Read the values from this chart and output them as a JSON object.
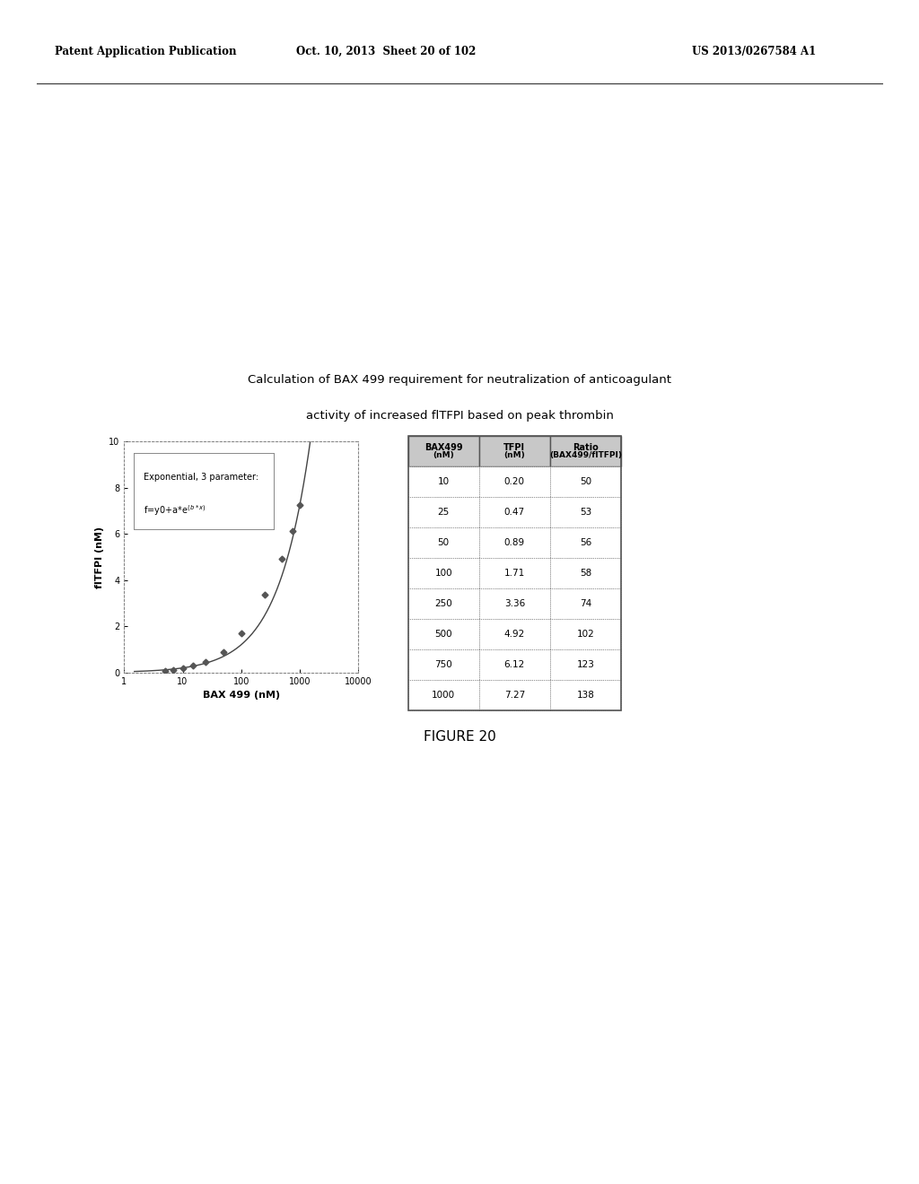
{
  "header_left": "Patent Application Publication",
  "header_mid": "Oct. 10, 2013  Sheet 20 of 102",
  "header_right": "US 2013/0267584 A1",
  "title_line1": "Calculation of BAX 499 requirement for neutralization of anticoagulant",
  "title_line2": "activity of increased flTFPI based on peak thrombin",
  "legend_text_line1": "Exponential, 3 parameter:",
  "legend_text_line2": "f=y0+a*e^(b*x)",
  "xlabel": "BAX 499 (nM)",
  "ylabel": "flTFPI (nM)",
  "xlim": [
    1,
    10000
  ],
  "ylim": [
    0,
    10
  ],
  "xticks": [
    1,
    10,
    100,
    1000,
    10000
  ],
  "xtick_labels": [
    "1",
    "10",
    "100",
    "1000",
    "10000"
  ],
  "yticks": [
    0,
    2,
    4,
    6,
    8,
    10
  ],
  "scatter_x": [
    5,
    7,
    10,
    15,
    25,
    50,
    100,
    250,
    500,
    750,
    1000
  ],
  "scatter_y": [
    0.08,
    0.12,
    0.2,
    0.3,
    0.47,
    0.89,
    1.71,
    3.36,
    4.92,
    6.12,
    7.27
  ],
  "table_col_header1": "BAX499",
  "table_col_header1b": "(nM)",
  "table_col_header2": "TFPI",
  "table_col_header2b": "(nM)",
  "table_col_header3": "Ratio",
  "table_col_header3b": "(BAX499/flTFPI)",
  "table_data": [
    [
      "10",
      "0.20",
      "50"
    ],
    [
      "25",
      "0.47",
      "53"
    ],
    [
      "50",
      "0.89",
      "56"
    ],
    [
      "100",
      "1.71",
      "58"
    ],
    [
      "250",
      "3.36",
      "74"
    ],
    [
      "500",
      "4.92",
      "102"
    ],
    [
      "750",
      "6.12",
      "123"
    ],
    [
      "1000",
      "7.27",
      "138"
    ]
  ],
  "figure_label": "FIGURE 20",
  "bg_color": "#ffffff",
  "scatter_color": "#555555",
  "curve_color": "#444444",
  "table_header_bg": "#c8c8c8",
  "table_outer_border": "#555555",
  "table_inner_border": "#888888"
}
